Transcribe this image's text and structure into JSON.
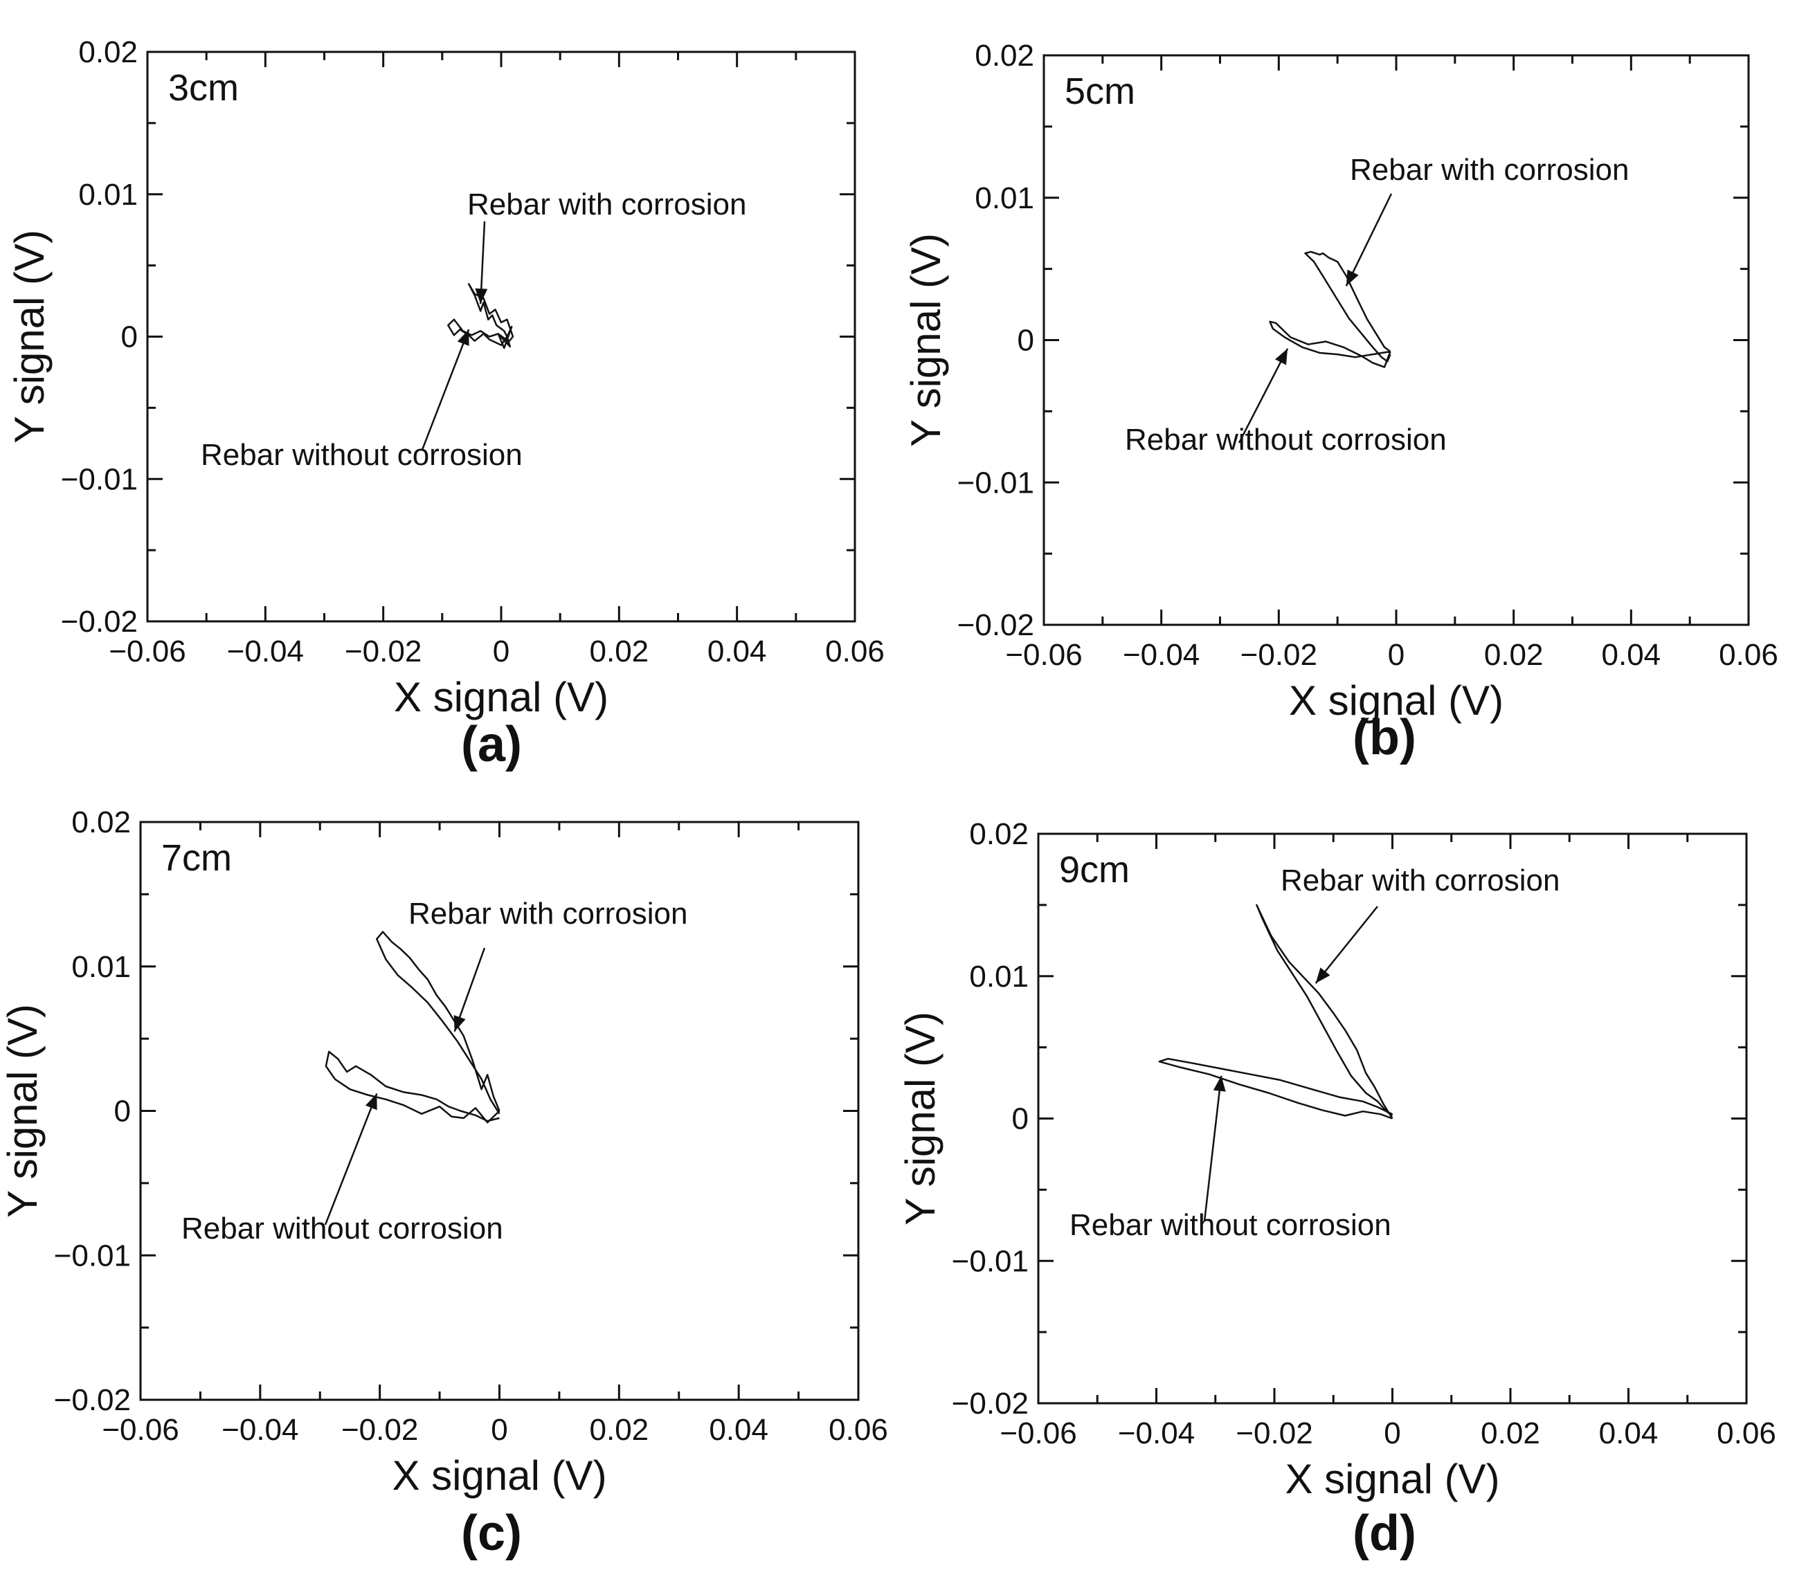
{
  "chart_data": [
    {
      "type": "line",
      "panel_label": "(a)",
      "inset_label": "3cm",
      "xlabel": "X signal (V)",
      "ylabel": "Y signal (V)",
      "xlim": [
        -0.06,
        0.06
      ],
      "ylim": [
        -0.02,
        0.02
      ],
      "xticks": [
        "-0.06",
        "-0.04",
        "-0.02",
        "0",
        "0.02",
        "0.04",
        "0.06"
      ],
      "yticks": [
        "-0.02",
        "-0.01",
        "0",
        "0.01",
        "0.02"
      ],
      "grid": false,
      "series": [
        {
          "name": "Rebar with corrosion",
          "x": [
            0.001,
            0.0005,
            -0.0008,
            -0.0015,
            -0.0022,
            -0.003,
            -0.0035,
            -0.0045,
            -0.0055,
            -0.0045,
            -0.003,
            -0.002,
            -0.001,
            0.0,
            0.001,
            0.0015,
            0.002,
            0.001
          ],
          "y": [
            0.0,
            0.0004,
            0.0008,
            0.0015,
            0.0012,
            0.0024,
            0.0018,
            0.0029,
            0.0037,
            0.003,
            0.0027,
            0.0016,
            0.0019,
            0.001,
            0.0012,
            0.0006,
            0.0,
            -0.0005
          ]
        },
        {
          "name": "Rebar without corrosion",
          "x": [
            0.001,
            0.0,
            -0.002,
            -0.003,
            -0.0045,
            -0.0055,
            -0.007,
            -0.008,
            -0.009,
            -0.008,
            -0.0065,
            -0.005,
            -0.0035,
            -0.002,
            -0.0005,
            0.0008,
            0.0018,
            0.0005,
            -0.0005,
            0.0015,
            0.001
          ],
          "y": [
            0.0,
            -0.0006,
            -0.0002,
            0.0002,
            -0.0003,
            0.0001,
            0.0005,
            0.0001,
            0.0008,
            0.0012,
            0.0004,
            0.0001,
            0.0004,
            0.0,
            0.0002,
            -0.0002,
            0.0007,
            -0.0008,
            0.0002,
            -0.0007,
            0.0
          ]
        }
      ],
      "annotations": [
        {
          "text": "Rebar with corrosion",
          "at": [
            -0.0035,
            0.0023
          ]
        },
        {
          "text": "Rebar without corrosion",
          "at": [
            -0.0055,
            0.0005
          ]
        }
      ]
    },
    {
      "type": "line",
      "panel_label": "(b)",
      "inset_label": "5cm",
      "xlabel": "X signal (V)",
      "ylabel": "Y signal (V)",
      "xlim": [
        -0.06,
        0.06
      ],
      "ylim": [
        -0.02,
        0.02
      ],
      "xticks": [
        "-0.06",
        "-0.04",
        "-0.02",
        "0",
        "0.02",
        "0.04",
        "0.06"
      ],
      "yticks": [
        "-0.02",
        "-0.01",
        "0",
        "0.01",
        "0.02"
      ],
      "grid": false,
      "series": [
        {
          "name": "Rebar with corrosion",
          "x": [
            -0.001,
            -0.002,
            -0.0035,
            -0.005,
            -0.007,
            -0.0085,
            -0.01,
            -0.0115,
            -0.0125,
            -0.013,
            -0.0145,
            -0.0155,
            -0.014,
            -0.0125,
            -0.011,
            -0.0095,
            -0.008,
            -0.006,
            -0.004,
            -0.0025,
            -0.0015,
            -0.001
          ],
          "y": [
            -0.0008,
            -0.0005,
            0.0005,
            0.0015,
            0.0032,
            0.0045,
            0.0055,
            0.0058,
            0.0061,
            0.006,
            0.0062,
            0.0061,
            0.0055,
            0.0045,
            0.0035,
            0.0025,
            0.0015,
            0.0005,
            -0.0005,
            -0.0012,
            -0.0015,
            -0.001
          ]
        },
        {
          "name": "Rebar without corrosion",
          "x": [
            -0.001,
            -0.004,
            -0.007,
            -0.01,
            -0.013,
            -0.016,
            -0.019,
            -0.021,
            -0.0215,
            -0.0205,
            -0.018,
            -0.015,
            -0.012,
            -0.009,
            -0.006,
            -0.004,
            -0.002,
            -0.001
          ],
          "y": [
            -0.0008,
            -0.001,
            -0.0012,
            -0.001,
            -0.0009,
            -0.0005,
            0.0002,
            0.0008,
            0.0013,
            0.0012,
            0.0002,
            -0.0003,
            -0.0001,
            -0.0005,
            -0.0011,
            -0.0016,
            -0.0019,
            -0.0008
          ]
        }
      ],
      "annotations": [
        {
          "text": "Rebar with corrosion",
          "at": [
            -0.0085,
            0.0038
          ]
        },
        {
          "text": "Rebar without corrosion",
          "at": [
            -0.0185,
            -0.0006
          ]
        }
      ]
    },
    {
      "type": "line",
      "panel_label": "(c)",
      "inset_label": "7cm",
      "xlabel": "X signal (V)",
      "ylabel": "Y signal (V)",
      "xlim": [
        -0.06,
        0.06
      ],
      "ylim": [
        -0.02,
        0.02
      ],
      "xticks": [
        "-0.06",
        "-0.04",
        "-0.02",
        "0",
        "0.02",
        "0.04",
        "0.06"
      ],
      "yticks": [
        "-0.02",
        "-0.01",
        "0",
        "0.01",
        "0.02"
      ],
      "grid": false,
      "series": [
        {
          "name": "Rebar with corrosion",
          "x": [
            0.0,
            -0.001,
            -0.002,
            -0.003,
            -0.0045,
            -0.006,
            -0.0075,
            -0.009,
            -0.0105,
            -0.012,
            -0.0135,
            -0.015,
            -0.0165,
            -0.018,
            -0.0195,
            -0.0205,
            -0.019,
            -0.017,
            -0.0145,
            -0.012,
            -0.0095,
            -0.007,
            -0.005,
            -0.003,
            -0.0015,
            0.0
          ],
          "y": [
            0.0,
            0.001,
            0.0025,
            0.0015,
            0.0035,
            0.0052,
            0.0062,
            0.0072,
            0.008,
            0.0091,
            0.0098,
            0.0106,
            0.0112,
            0.0117,
            0.0124,
            0.0119,
            0.0105,
            0.0094,
            0.0085,
            0.0075,
            0.0062,
            0.0048,
            0.0035,
            0.0022,
            0.0008,
            -0.0002
          ]
        },
        {
          "name": "Rebar without corrosion",
          "x": [
            0.0,
            -0.002,
            -0.004,
            -0.006,
            -0.008,
            -0.01,
            -0.013,
            -0.016,
            -0.019,
            -0.022,
            -0.025,
            -0.0275,
            -0.029,
            -0.0285,
            -0.027,
            -0.0255,
            -0.024,
            -0.0215,
            -0.019,
            -0.016,
            -0.013,
            -0.0105,
            -0.0085,
            -0.0065,
            -0.004,
            -0.002,
            0.0
          ],
          "y": [
            0.0,
            -0.0008,
            0.0002,
            -0.0005,
            -0.0004,
            0.0003,
            -0.0002,
            0.0004,
            0.0008,
            0.0011,
            0.0015,
            0.0022,
            0.0031,
            0.0041,
            0.0036,
            0.0027,
            0.0031,
            0.0025,
            0.0017,
            0.0013,
            0.0011,
            0.0008,
            0.0003,
            0.0,
            -0.0003,
            -0.0007,
            -0.0005
          ]
        }
      ],
      "annotations": [
        {
          "text": "Rebar with corrosion",
          "at": [
            -0.0075,
            0.0055
          ]
        },
        {
          "text": "Rebar without corrosion",
          "at": [
            -0.0205,
            0.0012
          ]
        }
      ]
    },
    {
      "type": "line",
      "panel_label": "(d)",
      "inset_label": "9cm",
      "xlabel": "X signal (V)",
      "ylabel": "Y signal (V)",
      "xlim": [
        -0.06,
        0.06
      ],
      "ylim": [
        -0.02,
        0.02
      ],
      "xticks": [
        "-0.06",
        "-0.04",
        "-0.02",
        "0",
        "0.02",
        "0.04",
        "0.06"
      ],
      "yticks": [
        "-0.02",
        "-0.01",
        "0",
        "0.01",
        "0.02"
      ],
      "grid": false,
      "series": [
        {
          "name": "Rebar with corrosion",
          "x": [
            0.0,
            -0.0015,
            -0.003,
            -0.0045,
            -0.006,
            -0.008,
            -0.01,
            -0.0125,
            -0.015,
            -0.0175,
            -0.0205,
            -0.023,
            -0.022,
            -0.0195,
            -0.017,
            -0.0145,
            -0.012,
            -0.0095,
            -0.007,
            -0.0045,
            -0.0025,
            -0.001,
            0.0
          ],
          "y": [
            0.0,
            0.001,
            0.0022,
            0.0032,
            0.0048,
            0.0062,
            0.0074,
            0.0088,
            0.0099,
            0.011,
            0.0128,
            0.015,
            0.014,
            0.0118,
            0.0102,
            0.0086,
            0.0067,
            0.0048,
            0.003,
            0.0018,
            0.0012,
            0.0005,
            0.0002
          ]
        },
        {
          "name": "Rebar without corrosion",
          "x": [
            0.0,
            -0.002,
            -0.005,
            -0.008,
            -0.012,
            -0.016,
            -0.021,
            -0.026,
            -0.031,
            -0.036,
            -0.0395,
            -0.038,
            -0.034,
            -0.029,
            -0.024,
            -0.019,
            -0.014,
            -0.009,
            -0.005,
            -0.0025,
            -0.001,
            0.0
          ],
          "y": [
            0.0,
            0.0003,
            0.0005,
            0.0002,
            0.0006,
            0.0011,
            0.0018,
            0.0024,
            0.0031,
            0.0036,
            0.004,
            0.0042,
            0.0039,
            0.0035,
            0.0031,
            0.0027,
            0.0021,
            0.0015,
            0.0012,
            0.0008,
            0.0005,
            0.0003
          ]
        }
      ],
      "annotations": [
        {
          "text": "Rebar with corrosion",
          "at": [
            -0.013,
            0.0095
          ]
        },
        {
          "text": "Rebar without corrosion",
          "at": [
            -0.029,
            0.003
          ]
        }
      ]
    }
  ]
}
